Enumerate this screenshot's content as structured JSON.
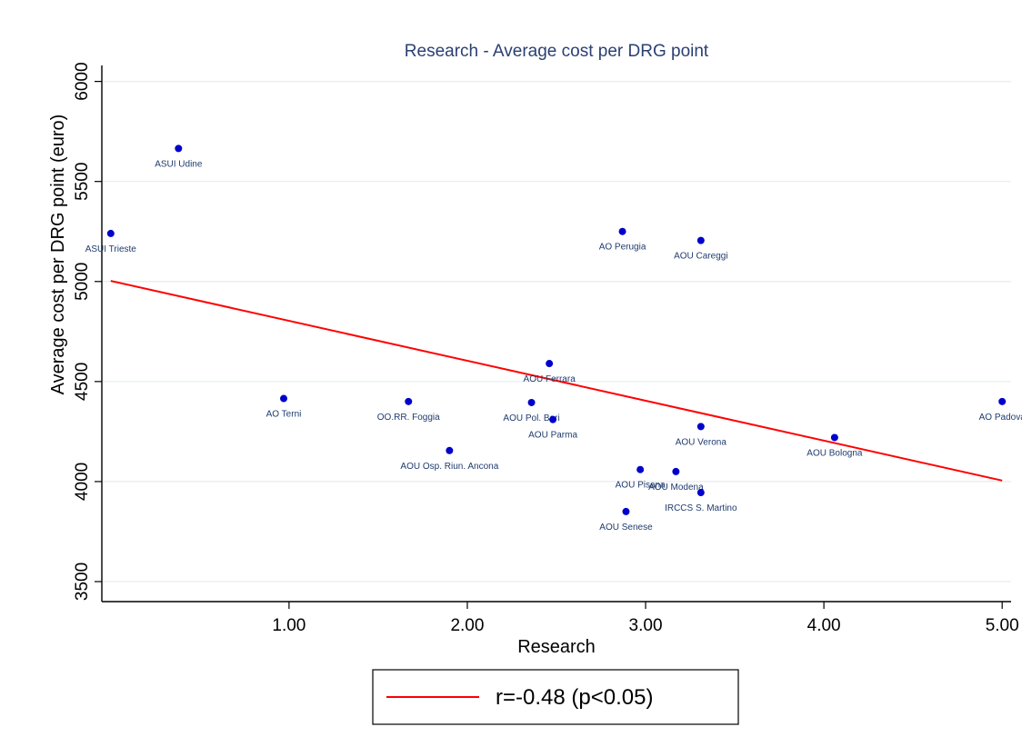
{
  "chart_data": {
    "type": "scatter",
    "title": "Research - Average cost per DRG point",
    "xlabel": "Research",
    "ylabel": "Average cost per DRG point (euro)",
    "xlim": [
      -0.05,
      5.05
    ],
    "ylim": [
      3400,
      6080
    ],
    "x_ticks": [
      1,
      2,
      3,
      4,
      5
    ],
    "x_tick_labels": [
      "1.00",
      "2.00",
      "3.00",
      "4.00",
      "5.00"
    ],
    "y_ticks": [
      3500,
      4000,
      4500,
      5000,
      5500,
      6000
    ],
    "y_tick_labels": [
      "3500",
      "4000",
      "4500",
      "5000",
      "5500",
      "6000"
    ],
    "grid": "horizontal",
    "legend_position": "bottom",
    "point_color": "#0000cc",
    "line_color": "#ff0000",
    "series": [
      {
        "points": [
          {
            "label": "ASUI Udine",
            "x": 0.38,
            "y": 5665
          },
          {
            "label": "ASUI Trieste",
            "x": 0.0,
            "y": 5240
          },
          {
            "label": "AO Perugia",
            "x": 2.87,
            "y": 5250
          },
          {
            "label": "AOU Careggi",
            "x": 3.31,
            "y": 5205
          },
          {
            "label": "AOU Ferrara",
            "x": 2.46,
            "y": 4590
          },
          {
            "label": "AO Terni",
            "x": 0.97,
            "y": 4415
          },
          {
            "label": "OO.RR. Foggia",
            "x": 1.67,
            "y": 4400
          },
          {
            "label": "AOU Pol. Bari",
            "x": 2.36,
            "y": 4395
          },
          {
            "label": "AOU Parma",
            "x": 2.48,
            "y": 4310
          },
          {
            "label": "AO Padova",
            "x": 5.0,
            "y": 4400
          },
          {
            "label": "AOU Verona",
            "x": 3.31,
            "y": 4275
          },
          {
            "label": "AOU Bologna",
            "x": 4.06,
            "y": 4220
          },
          {
            "label": "AOU Osp. Riun. Ancona",
            "x": 1.9,
            "y": 4155
          },
          {
            "label": "AOU Pisana",
            "x": 2.97,
            "y": 4060
          },
          {
            "label": "AOU Modena",
            "x": 3.17,
            "y": 4050
          },
          {
            "label": "IRCCS S. Martino",
            "x": 3.31,
            "y": 3945
          },
          {
            "label": "AOU Senese",
            "x": 2.89,
            "y": 3850
          }
        ]
      },
      {
        "name": "r=-0.48 (p<0.05)",
        "type": "line",
        "points": [
          {
            "x": 0.0,
            "y": 5003
          },
          {
            "x": 5.0,
            "y": 4005
          }
        ]
      }
    ]
  }
}
